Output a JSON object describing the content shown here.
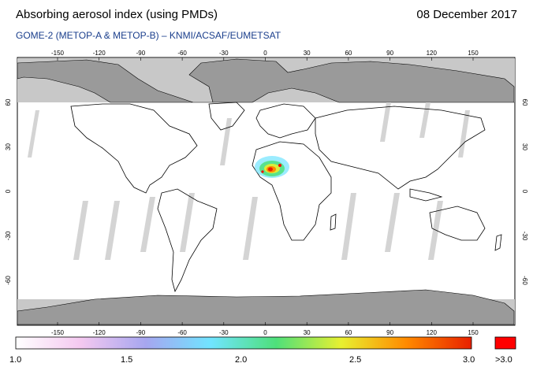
{
  "header": {
    "title": "Absorbing aerosol index (using PMDs)",
    "date": "08 December 2017",
    "subtitle": "GOME-2 (METOP-A & METOP-B)  –  KNMI/ACSAF/EUMETSAT"
  },
  "map": {
    "lon_ticks": [
      "-150",
      "-120",
      "-90",
      "-60",
      "-30",
      "0",
      "30",
      "60",
      "90",
      "120",
      "150"
    ],
    "lat_ticks": [
      "60",
      "30",
      "0",
      "-30",
      "-60"
    ],
    "colors": {
      "land_outline": "#000000",
      "no_data": "#cfcfcf",
      "polar_mask": "#bdbdbd"
    }
  },
  "colorbar": {
    "labels": [
      "1.0",
      "1.5",
      "2.0",
      "2.5",
      "3.0"
    ],
    "overflow_label": ">3.0",
    "min": 1.0,
    "max": 3.0,
    "colors": [
      "#ffffff",
      "#f4c8f0",
      "#a6a6f0",
      "#70e4ff",
      "#4ee07a",
      "#e8f030",
      "#ff8a00",
      "#e82000"
    ],
    "overflow_color": "#ff0000"
  }
}
